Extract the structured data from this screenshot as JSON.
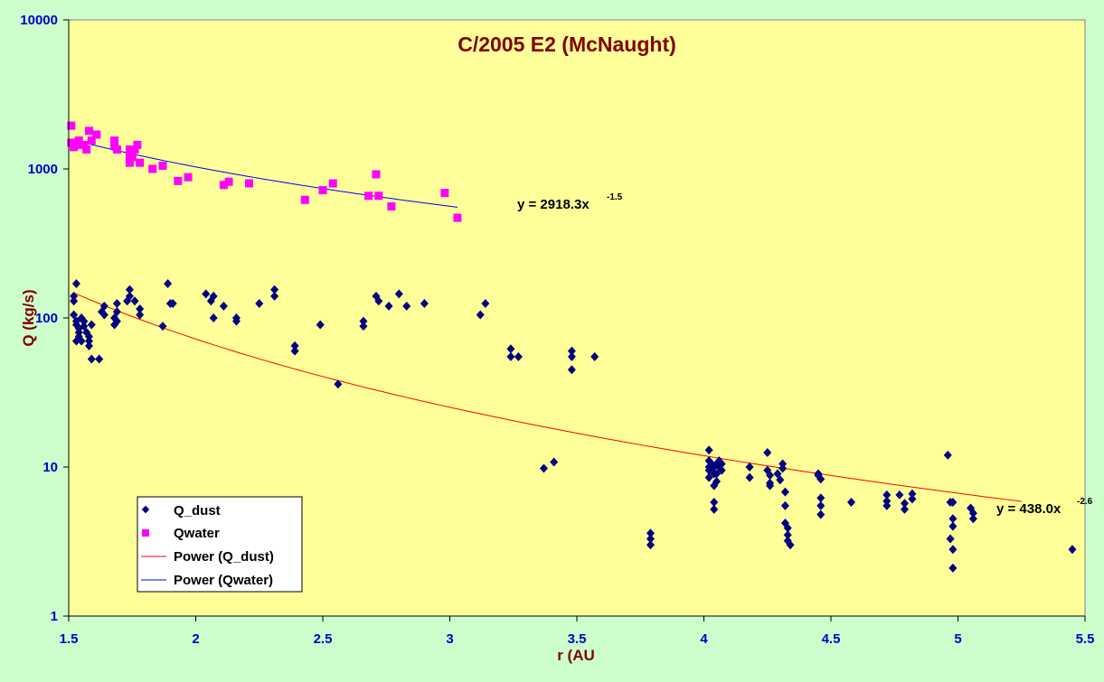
{
  "chart_data": {
    "type": "scatter",
    "title": "C/2005 E2 (McNaught)",
    "xlabel": "r (AU",
    "ylabel": "Q (kg/s)",
    "xlim": [
      1.5,
      5.5
    ],
    "ylim": [
      1,
      10000
    ],
    "y_scale": "log",
    "x_ticks": [
      "1.5",
      "2",
      "2.5",
      "3",
      "3.5",
      "4",
      "4.5",
      "5",
      "5.5"
    ],
    "y_ticks": [
      "1",
      "10",
      "100",
      "1000",
      "10000"
    ],
    "grid": "none",
    "legend_position": "bottom-left",
    "colors": {
      "background": "#ccffcc",
      "plot_area": "#ffff99",
      "q_dust": "#000080",
      "qwater": "#ff00ff",
      "fit_dust": "#ff0000",
      "fit_water": "#0000ff",
      "title": "#800000",
      "axis_labels": "#0000cc"
    },
    "series": [
      {
        "name": "Q_dust",
        "marker": "diamond",
        "points": [
          [
            1.52,
            140
          ],
          [
            1.52,
            130
          ],
          [
            1.53,
            170
          ],
          [
            1.52,
            105
          ],
          [
            1.53,
            95
          ],
          [
            1.53,
            90
          ],
          [
            1.54,
            85
          ],
          [
            1.54,
            80
          ],
          [
            1.54,
            75
          ],
          [
            1.55,
            70
          ],
          [
            1.53,
            70
          ],
          [
            1.55,
            100
          ],
          [
            1.56,
            95
          ],
          [
            1.56,
            88
          ],
          [
            1.57,
            80
          ],
          [
            1.58,
            75
          ],
          [
            1.58,
            70
          ],
          [
            1.58,
            65
          ],
          [
            1.59,
            90
          ],
          [
            1.59,
            53
          ],
          [
            1.62,
            53
          ],
          [
            1.63,
            110
          ],
          [
            1.64,
            105
          ],
          [
            1.64,
            120
          ],
          [
            1.68,
            90
          ],
          [
            1.68,
            100
          ],
          [
            1.69,
            110
          ],
          [
            1.69,
            125
          ],
          [
            1.69,
            95
          ],
          [
            1.73,
            130
          ],
          [
            1.74,
            140
          ],
          [
            1.74,
            155
          ],
          [
            1.78,
            105
          ],
          [
            1.78,
            115
          ],
          [
            1.76,
            130
          ],
          [
            1.87,
            88
          ],
          [
            1.89,
            170
          ],
          [
            1.9,
            125
          ],
          [
            1.91,
            125
          ],
          [
            2.04,
            145
          ],
          [
            2.06,
            130
          ],
          [
            2.07,
            140
          ],
          [
            2.07,
            100
          ],
          [
            2.11,
            120
          ],
          [
            2.16,
            100
          ],
          [
            2.16,
            95
          ],
          [
            2.25,
            125
          ],
          [
            2.31,
            140
          ],
          [
            2.31,
            155
          ],
          [
            2.39,
            60
          ],
          [
            2.39,
            65
          ],
          [
            2.49,
            90
          ],
          [
            2.56,
            36
          ],
          [
            2.66,
            95
          ],
          [
            2.66,
            88
          ],
          [
            2.71,
            140
          ],
          [
            2.72,
            130
          ],
          [
            2.76,
            120
          ],
          [
            2.8,
            145
          ],
          [
            2.83,
            120
          ],
          [
            2.9,
            125
          ],
          [
            3.12,
            105
          ],
          [
            3.14,
            125
          ],
          [
            3.24,
            55
          ],
          [
            3.24,
            62
          ],
          [
            3.27,
            55
          ],
          [
            3.37,
            9.8
          ],
          [
            3.41,
            10.8
          ],
          [
            3.48,
            60
          ],
          [
            3.48,
            55
          ],
          [
            3.48,
            45
          ],
          [
            3.57,
            55
          ],
          [
            3.79,
            3.6
          ],
          [
            3.79,
            3.3
          ],
          [
            3.79,
            3.0
          ],
          [
            4.02,
            13
          ],
          [
            4.02,
            11
          ],
          [
            4.02,
            10
          ],
          [
            4.02,
            9.5
          ],
          [
            4.02,
            8.5
          ],
          [
            4.03,
            10.5
          ],
          [
            4.04,
            10
          ],
          [
            4.04,
            9
          ],
          [
            4.04,
            7.5
          ],
          [
            4.04,
            5.8
          ],
          [
            4.04,
            5.2
          ],
          [
            4.05,
            10.5
          ],
          [
            4.05,
            9
          ],
          [
            4.05,
            8
          ],
          [
            4.06,
            10
          ],
          [
            4.06,
            11
          ],
          [
            4.07,
            10.5
          ],
          [
            4.07,
            9.5
          ],
          [
            4.18,
            10
          ],
          [
            4.18,
            8.5
          ],
          [
            4.25,
            12.5
          ],
          [
            4.25,
            9.5
          ],
          [
            4.26,
            8.8
          ],
          [
            4.26,
            7.5
          ],
          [
            4.26,
            7.8
          ],
          [
            4.29,
            9
          ],
          [
            4.3,
            8.2
          ],
          [
            4.31,
            10.5
          ],
          [
            4.31,
            9.8
          ],
          [
            4.32,
            6.8
          ],
          [
            4.32,
            5.5
          ],
          [
            4.32,
            4.2
          ],
          [
            4.33,
            3.9
          ],
          [
            4.33,
            3.5
          ],
          [
            4.33,
            3.2
          ],
          [
            4.34,
            3.0
          ],
          [
            4.45,
            9
          ],
          [
            4.45,
            8.8
          ],
          [
            4.46,
            8.3
          ],
          [
            4.46,
            6.2
          ],
          [
            4.46,
            5.5
          ],
          [
            4.46,
            4.8
          ],
          [
            4.58,
            5.8
          ],
          [
            4.72,
            6.5
          ],
          [
            4.72,
            5.9
          ],
          [
            4.72,
            5.5
          ],
          [
            4.77,
            6.5
          ],
          [
            4.79,
            5.7
          ],
          [
            4.79,
            5.2
          ],
          [
            4.82,
            6.6
          ],
          [
            4.82,
            6.1
          ],
          [
            4.96,
            12
          ],
          [
            4.97,
            5.8
          ],
          [
            4.97,
            3.3
          ],
          [
            4.98,
            5.8
          ],
          [
            4.98,
            4.5
          ],
          [
            4.98,
            4.0
          ],
          [
            4.98,
            2.8
          ],
          [
            4.98,
            2.1
          ],
          [
            5.05,
            5.3
          ],
          [
            5.06,
            4.9
          ],
          [
            5.06,
            4.5
          ],
          [
            5.45,
            2.8
          ]
        ]
      },
      {
        "name": "Qwater",
        "marker": "square",
        "points": [
          [
            1.51,
            1950
          ],
          [
            1.51,
            1500
          ],
          [
            1.52,
            1400
          ],
          [
            1.53,
            1450
          ],
          [
            1.54,
            1550
          ],
          [
            1.56,
            1450
          ],
          [
            1.57,
            1350
          ],
          [
            1.58,
            1800
          ],
          [
            1.59,
            1550
          ],
          [
            1.61,
            1700
          ],
          [
            1.68,
            1550
          ],
          [
            1.68,
            1450
          ],
          [
            1.69,
            1350
          ],
          [
            1.74,
            1350
          ],
          [
            1.74,
            1200
          ],
          [
            1.74,
            1100
          ],
          [
            1.75,
            1200
          ],
          [
            1.76,
            1350
          ],
          [
            1.77,
            1450
          ],
          [
            1.78,
            1100
          ],
          [
            1.83,
            1000
          ],
          [
            1.87,
            1050
          ],
          [
            1.93,
            830
          ],
          [
            1.97,
            880
          ],
          [
            2.11,
            780
          ],
          [
            2.13,
            820
          ],
          [
            2.21,
            800
          ],
          [
            2.43,
            620
          ],
          [
            2.5,
            720
          ],
          [
            2.54,
            800
          ],
          [
            2.68,
            660
          ],
          [
            2.71,
            920
          ],
          [
            2.72,
            660
          ],
          [
            2.77,
            560
          ],
          [
            2.98,
            690
          ],
          [
            3.03,
            470
          ]
        ]
      }
    ],
    "trendlines": [
      {
        "name": "Power (Q_dust)",
        "series": "Q_dust",
        "type": "power",
        "a": 438.0,
        "b": -2.6,
        "x_range": [
          1.52,
          5.25
        ],
        "label": "y = 438.0x",
        "exponent_label": "-2.6"
      },
      {
        "name": "Power (Qwater)",
        "series": "Qwater",
        "type": "power",
        "a": 2918.3,
        "b": -1.5,
        "x_range": [
          1.51,
          3.03
        ],
        "label": "y = 2918.3x",
        "exponent_label": "-1.5"
      }
    ]
  }
}
